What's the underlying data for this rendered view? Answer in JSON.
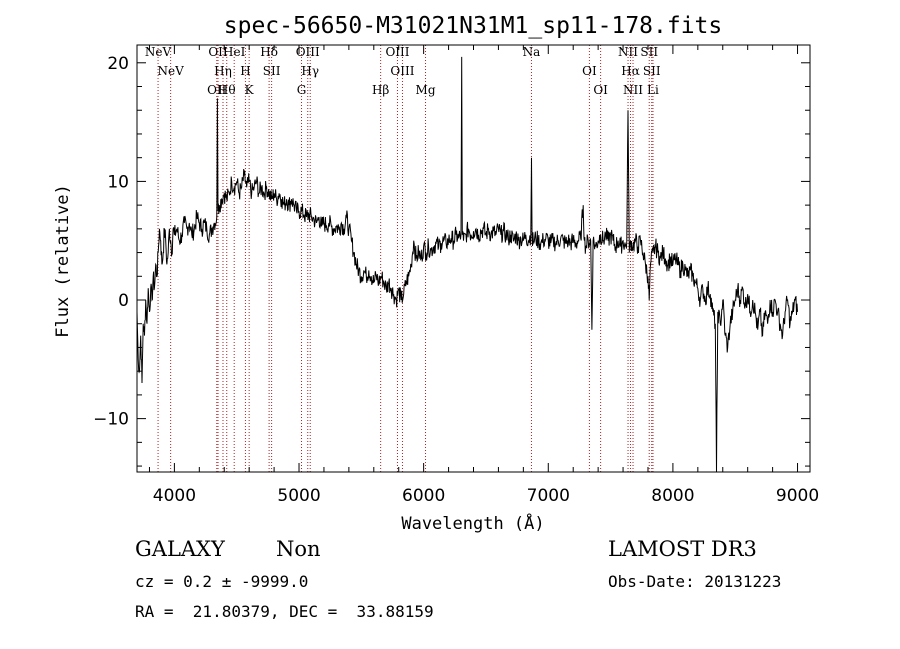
{
  "chart_data": {
    "type": "line",
    "title": "spec-56650-M31021N31M1_sp11-178.fits",
    "xlabel": "Wavelength (Å)",
    "ylabel": "Flux (relative)",
    "xlim": [
      3700,
      9100
    ],
    "ylim": [
      -14.5,
      21.5
    ],
    "xticks": [
      4000,
      5000,
      6000,
      7000,
      8000,
      9000
    ],
    "yticks": [
      -10,
      0,
      10,
      20
    ],
    "spectrum": [
      [
        3700,
        -1
      ],
      [
        3710,
        -5
      ],
      [
        3720,
        -6
      ],
      [
        3730,
        -3
      ],
      [
        3740,
        -7
      ],
      [
        3750,
        -2
      ],
      [
        3760,
        -3
      ],
      [
        3770,
        0
      ],
      [
        3780,
        -2
      ],
      [
        3790,
        1
      ],
      [
        3800,
        -1
      ],
      [
        3810,
        1
      ],
      [
        3820,
        0
      ],
      [
        3830,
        2
      ],
      [
        3840,
        1
      ],
      [
        3850,
        3
      ],
      [
        3860,
        2
      ],
      [
        3870,
        4
      ],
      [
        3880,
        6
      ],
      [
        3890,
        5
      ],
      [
        3900,
        3
      ],
      [
        3910,
        4
      ],
      [
        3920,
        6
      ],
      [
        3930,
        5
      ],
      [
        3940,
        3
      ],
      [
        3950,
        4
      ],
      [
        3960,
        6
      ],
      [
        3970,
        5
      ],
      [
        3980,
        4
      ],
      [
        3990,
        6
      ],
      [
        4000,
        5.5
      ],
      [
        4020,
        6
      ],
      [
        4040,
        5
      ],
      [
        4060,
        5.5
      ],
      [
        4080,
        6.5
      ],
      [
        4100,
        6
      ],
      [
        4120,
        6.5
      ],
      [
        4140,
        5.5
      ],
      [
        4160,
        6
      ],
      [
        4180,
        7
      ],
      [
        4200,
        6.5
      ],
      [
        4220,
        6
      ],
      [
        4240,
        6.5
      ],
      [
        4260,
        6
      ],
      [
        4280,
        5.5
      ],
      [
        4300,
        6
      ],
      [
        4320,
        6.5
      ],
      [
        4340,
        7
      ],
      [
        4345,
        17
      ],
      [
        4350,
        7.5
      ],
      [
        4360,
        8
      ],
      [
        4380,
        8.5
      ],
      [
        4400,
        9
      ],
      [
        4420,
        8.5
      ],
      [
        4440,
        9
      ],
      [
        4460,
        10
      ],
      [
        4480,
        9.5
      ],
      [
        4500,
        10
      ],
      [
        4520,
        9
      ],
      [
        4540,
        9.5
      ],
      [
        4560,
        10.5
      ],
      [
        4580,
        9.5
      ],
      [
        4600,
        10
      ],
      [
        4620,
        9
      ],
      [
        4640,
        9.5
      ],
      [
        4660,
        10
      ],
      [
        4680,
        9
      ],
      [
        4700,
        9.5
      ],
      [
        4720,
        9
      ],
      [
        4740,
        9.5
      ],
      [
        4760,
        9
      ],
      [
        4780,
        8.5
      ],
      [
        4800,
        9
      ],
      [
        4820,
        8.5
      ],
      [
        4840,
        9
      ],
      [
        4860,
        8.5
      ],
      [
        4880,
        8
      ],
      [
        4900,
        8.5
      ],
      [
        4920,
        8
      ],
      [
        4940,
        8.5
      ],
      [
        4960,
        8
      ],
      [
        4980,
        7.5
      ],
      [
        5000,
        7.5
      ],
      [
        5020,
        7.5
      ],
      [
        5040,
        7.2
      ],
      [
        5060,
        7
      ],
      [
        5080,
        7.2
      ],
      [
        5100,
        7
      ],
      [
        5120,
        6.8
      ],
      [
        5140,
        6.5
      ],
      [
        5160,
        7
      ],
      [
        5180,
        6.2
      ],
      [
        5200,
        6.5
      ],
      [
        5220,
        6.3
      ],
      [
        5240,
        6.5
      ],
      [
        5260,
        6.2
      ],
      [
        5280,
        6
      ],
      [
        5300,
        6.2
      ],
      [
        5320,
        6
      ],
      [
        5340,
        6.5
      ],
      [
        5360,
        6
      ],
      [
        5380,
        7
      ],
      [
        5400,
        6
      ],
      [
        5420,
        5
      ],
      [
        5440,
        4
      ],
      [
        5460,
        3
      ],
      [
        5480,
        2.5
      ],
      [
        5500,
        2
      ],
      [
        5520,
        2.5
      ],
      [
        5540,
        2
      ],
      [
        5560,
        2.5
      ],
      [
        5580,
        2
      ],
      [
        5600,
        1.5
      ],
      [
        5620,
        2
      ],
      [
        5640,
        1.5
      ],
      [
        5660,
        2
      ],
      [
        5680,
        1.5
      ],
      [
        5700,
        1
      ],
      [
        5720,
        1.5
      ],
      [
        5740,
        1
      ],
      [
        5760,
        0.5
      ],
      [
        5780,
        0
      ],
      [
        5800,
        0.8
      ],
      [
        5820,
        0
      ],
      [
        5840,
        0.5
      ],
      [
        5860,
        1.5
      ],
      [
        5880,
        2
      ],
      [
        5900,
        3
      ],
      [
        5920,
        5
      ],
      [
        5940,
        3.5
      ],
      [
        5960,
        4
      ],
      [
        5980,
        3.5
      ],
      [
        6000,
        4.5
      ],
      [
        6020,
        4
      ],
      [
        6040,
        4.5
      ],
      [
        6060,
        4.2
      ],
      [
        6080,
        4.5
      ],
      [
        6100,
        4.8
      ],
      [
        6120,
        4.5
      ],
      [
        6140,
        4.8
      ],
      [
        6160,
        5
      ],
      [
        6180,
        4.8
      ],
      [
        6200,
        5
      ],
      [
        6220,
        5.2
      ],
      [
        6240,
        5
      ],
      [
        6260,
        5.5
      ],
      [
        6280,
        5.2
      ],
      [
        6300,
        5.5
      ],
      [
        6305,
        20.5
      ],
      [
        6310,
        5.5
      ],
      [
        6320,
        5
      ],
      [
        6340,
        5.5
      ],
      [
        6360,
        6
      ],
      [
        6380,
        5.5
      ],
      [
        6400,
        5.8
      ],
      [
        6420,
        6
      ],
      [
        6440,
        5.5
      ],
      [
        6460,
        5.8
      ],
      [
        6480,
        6
      ],
      [
        6500,
        5.5
      ],
      [
        6520,
        6
      ],
      [
        6540,
        5.5
      ],
      [
        6560,
        5.8
      ],
      [
        6580,
        5.5
      ],
      [
        6600,
        6
      ],
      [
        6620,
        5.5
      ],
      [
        6640,
        5.8
      ],
      [
        6660,
        5.5
      ],
      [
        6680,
        5.2
      ],
      [
        6700,
        5.5
      ],
      [
        6720,
        5
      ],
      [
        6740,
        5.5
      ],
      [
        6760,
        5
      ],
      [
        6780,
        5.2
      ],
      [
        6800,
        5
      ],
      [
        6820,
        5.5
      ],
      [
        6840,
        5
      ],
      [
        6860,
        5.5
      ],
      [
        6865,
        12
      ],
      [
        6870,
        5
      ],
      [
        6880,
        5
      ],
      [
        6900,
        5.2
      ],
      [
        6920,
        5
      ],
      [
        6940,
        4.8
      ],
      [
        6960,
        5
      ],
      [
        6980,
        5.2
      ],
      [
        7000,
        5
      ],
      [
        7020,
        4.8
      ],
      [
        7040,
        5
      ],
      [
        7060,
        4.8
      ],
      [
        7080,
        5
      ],
      [
        7100,
        5.2
      ],
      [
        7120,
        5
      ],
      [
        7140,
        4.8
      ],
      [
        7160,
        5
      ],
      [
        7180,
        4.8
      ],
      [
        7200,
        5
      ],
      [
        7220,
        4.8
      ],
      [
        7240,
        5
      ],
      [
        7260,
        5.2
      ],
      [
        7280,
        8
      ],
      [
        7290,
        5
      ],
      [
        7300,
        4.5
      ],
      [
        7320,
        5
      ],
      [
        7340,
        5
      ],
      [
        7350,
        -2.5
      ],
      [
        7360,
        5
      ],
      [
        7380,
        4.5
      ],
      [
        7400,
        5
      ],
      [
        7420,
        5.5
      ],
      [
        7440,
        5
      ],
      [
        7460,
        5.5
      ],
      [
        7480,
        5
      ],
      [
        7500,
        5.5
      ],
      [
        7520,
        5
      ],
      [
        7540,
        4.5
      ],
      [
        7560,
        5
      ],
      [
        7580,
        4.5
      ],
      [
        7600,
        5
      ],
      [
        7620,
        4.5
      ],
      [
        7630,
        5
      ],
      [
        7640,
        16
      ],
      [
        7650,
        4
      ],
      [
        7660,
        5
      ],
      [
        7680,
        4.5
      ],
      [
        7700,
        5
      ],
      [
        7720,
        4.5
      ],
      [
        7740,
        5
      ],
      [
        7760,
        4
      ],
      [
        7780,
        3
      ],
      [
        7800,
        2
      ],
      [
        7810,
        0
      ],
      [
        7820,
        3
      ],
      [
        7840,
        4
      ],
      [
        7860,
        4.5
      ],
      [
        7880,
        4
      ],
      [
        7900,
        3.5
      ],
      [
        7920,
        4
      ],
      [
        7940,
        3.5
      ],
      [
        7960,
        3
      ],
      [
        7980,
        3.5
      ],
      [
        8000,
        3
      ],
      [
        8020,
        3.5
      ],
      [
        8040,
        3
      ],
      [
        8060,
        2.5
      ],
      [
        8080,
        3
      ],
      [
        8100,
        2.5
      ],
      [
        8120,
        2
      ],
      [
        8140,
        2.5
      ],
      [
        8160,
        2
      ],
      [
        8180,
        1.5
      ],
      [
        8200,
        1
      ],
      [
        8220,
        0
      ],
      [
        8240,
        1
      ],
      [
        8260,
        0
      ],
      [
        8280,
        1
      ],
      [
        8300,
        0.5
      ],
      [
        8320,
        -1
      ],
      [
        8340,
        -2
      ],
      [
        8350,
        -14.5
      ],
      [
        8360,
        -1
      ],
      [
        8380,
        -2
      ],
      [
        8400,
        0
      ],
      [
        8420,
        -3
      ],
      [
        8440,
        -4
      ],
      [
        8460,
        -2
      ],
      [
        8480,
        -1
      ],
      [
        8500,
        0
      ],
      [
        8520,
        1
      ],
      [
        8540,
        0
      ],
      [
        8560,
        1
      ],
      [
        8580,
        -0.5
      ],
      [
        8600,
        0.5
      ],
      [
        8620,
        -1
      ],
      [
        8640,
        0
      ],
      [
        8660,
        -1
      ],
      [
        8680,
        -2.5
      ],
      [
        8700,
        -1
      ],
      [
        8720,
        -3
      ],
      [
        8740,
        -1
      ],
      [
        8760,
        -2
      ],
      [
        8780,
        0
      ],
      [
        8800,
        -1
      ],
      [
        8820,
        0
      ],
      [
        8840,
        -1
      ],
      [
        8860,
        -2
      ],
      [
        8880,
        -3
      ],
      [
        8900,
        -1
      ],
      [
        8920,
        0
      ],
      [
        8940,
        -2
      ],
      [
        8960,
        -1
      ],
      [
        8980,
        0
      ],
      [
        9000,
        -1
      ]
    ],
    "line_markers": [
      {
        "wavelength": 3869,
        "label": "NeV"
      },
      {
        "wavelength": 3970,
        "label": "NeV"
      },
      {
        "wavelength": 4340,
        "label": "OII"
      },
      {
        "wavelength": 4350,
        "label": "OII"
      },
      {
        "wavelength": 4390,
        "label": "Hη"
      },
      {
        "wavelength": 4420,
        "label": "Hθ"
      },
      {
        "wavelength": 4480,
        "label": "HeI"
      },
      {
        "wavelength": 4570,
        "label": "H"
      },
      {
        "wavelength": 4600,
        "label": "K"
      },
      {
        "wavelength": 4760,
        "label": "Hδ"
      },
      {
        "wavelength": 4780,
        "label": "SII"
      },
      {
        "wavelength": 5020,
        "label": "G"
      },
      {
        "wavelength": 5070,
        "label": "OIII"
      },
      {
        "wavelength": 5090,
        "label": "Hγ"
      },
      {
        "wavelength": 5655,
        "label": "Hβ"
      },
      {
        "wavelength": 5790,
        "label": "OIII"
      },
      {
        "wavelength": 5830,
        "label": "OIII"
      },
      {
        "wavelength": 6015,
        "label": "Mg"
      },
      {
        "wavelength": 6865,
        "label": "Na"
      },
      {
        "wavelength": 7330,
        "label": "OI"
      },
      {
        "wavelength": 7420,
        "label": "OI"
      },
      {
        "wavelength": 7640,
        "label": "NII"
      },
      {
        "wavelength": 7660,
        "label": "Hα"
      },
      {
        "wavelength": 7680,
        "label": "NII"
      },
      {
        "wavelength": 7810,
        "label": "SII"
      },
      {
        "wavelength": 7830,
        "label": "SII"
      },
      {
        "wavelength": 7840,
        "label": "Li"
      }
    ]
  },
  "info": {
    "object_class": "GALAXY",
    "subclass": "Non",
    "redshift": "cz = 0.2 ± -9999.0",
    "coords": "RA =  21.80379, DEC =  33.88159",
    "survey": "LAMOST DR3",
    "obs_date": "Obs-Date: 20131223"
  },
  "colors": {
    "marker": "#b22222",
    "spectrum": "#000000"
  }
}
